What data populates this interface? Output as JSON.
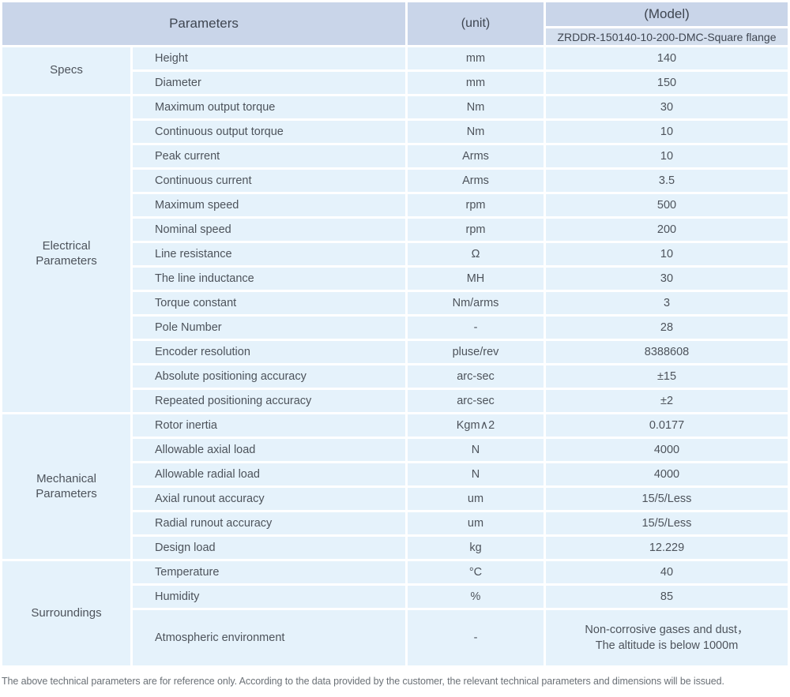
{
  "colors": {
    "header_bg": "#c9d5e9",
    "model_row_bg": "#d4dfee",
    "cell_bg": "#e5f2fb",
    "body_text": "#4d535b",
    "header_text": "#3f4651",
    "footer_text": "#6b7177"
  },
  "header": {
    "parameters_label": "Parameters",
    "unit_label": "(unit)",
    "model_label": "(Model)",
    "model_value": "ZRDDR-150140-10-200-DMC-Square flange"
  },
  "groups": [
    {
      "label": "Specs",
      "label_lines": [
        "Specs"
      ],
      "rows": [
        {
          "param": "Height",
          "unit": "mm",
          "value": "140"
        },
        {
          "param": "Diameter",
          "unit": "mm",
          "value": "150"
        }
      ]
    },
    {
      "label": "Electrical Parameters",
      "label_lines": [
        "Electrical",
        "Parameters"
      ],
      "rows": [
        {
          "param": "Maximum output torque",
          "unit": "Nm",
          "value": "30"
        },
        {
          "param": "Continuous output torque",
          "unit": "Nm",
          "value": "10"
        },
        {
          "param": "Peak current",
          "unit": "Arms",
          "value": "10"
        },
        {
          "param": "Continuous current",
          "unit": "Arms",
          "value": "3.5"
        },
        {
          "param": "Maximum speed",
          "unit": "rpm",
          "value": "500"
        },
        {
          "param": "Nominal speed",
          "unit": "rpm",
          "value": "200"
        },
        {
          "param": "Line resistance",
          "unit": "Ω",
          "value": "10"
        },
        {
          "param": "The line inductance",
          "unit": "MH",
          "value": "30"
        },
        {
          "param": "Torque constant",
          "unit": "Nm/arms",
          "value": "3"
        },
        {
          "param": "Pole Number",
          "unit": "-",
          "value": "28"
        },
        {
          "param": "Encoder resolution",
          "unit": "pluse/rev",
          "value": "8388608"
        },
        {
          "param": "Absolute positioning accuracy",
          "unit": "arc-sec",
          "value": "±15"
        },
        {
          "param": "Repeated positioning accuracy",
          "unit": "arc-sec",
          "value": "±2"
        }
      ]
    },
    {
      "label": "Mechanical Parameters",
      "label_lines": [
        "Mechanical",
        "Parameters"
      ],
      "rows": [
        {
          "param": "Rotor inertia",
          "unit": "Kgm∧2",
          "value": "0.0177"
        },
        {
          "param": "Allowable axial load",
          "unit": "N",
          "value": "4000"
        },
        {
          "param": "Allowable radial load",
          "unit": "N",
          "value": "4000"
        },
        {
          "param": "Axial runout accuracy",
          "unit": "um",
          "value": "15/5/Less"
        },
        {
          "param": "Radial runout accuracy",
          "unit": "um",
          "value": "15/5/Less"
        },
        {
          "param": "Design load",
          "unit": "kg",
          "value": "12.229"
        }
      ]
    },
    {
      "label": "Surroundings",
      "label_lines": [
        "Surroundings"
      ],
      "rows": [
        {
          "param": "Temperature",
          "unit": "°C",
          "value": "40"
        },
        {
          "param": "Humidity",
          "unit": "%",
          "value": "85"
        },
        {
          "param": "Atmospheric environment",
          "unit": "-",
          "tall": true,
          "value_lines": [
            "Non-corrosive gases and dust，",
            "The altitude is below 1000m"
          ]
        }
      ]
    }
  ],
  "footer_note": "The above technical parameters are for reference only. According to the data provided by the customer, the relevant technical parameters and dimensions will be issued."
}
